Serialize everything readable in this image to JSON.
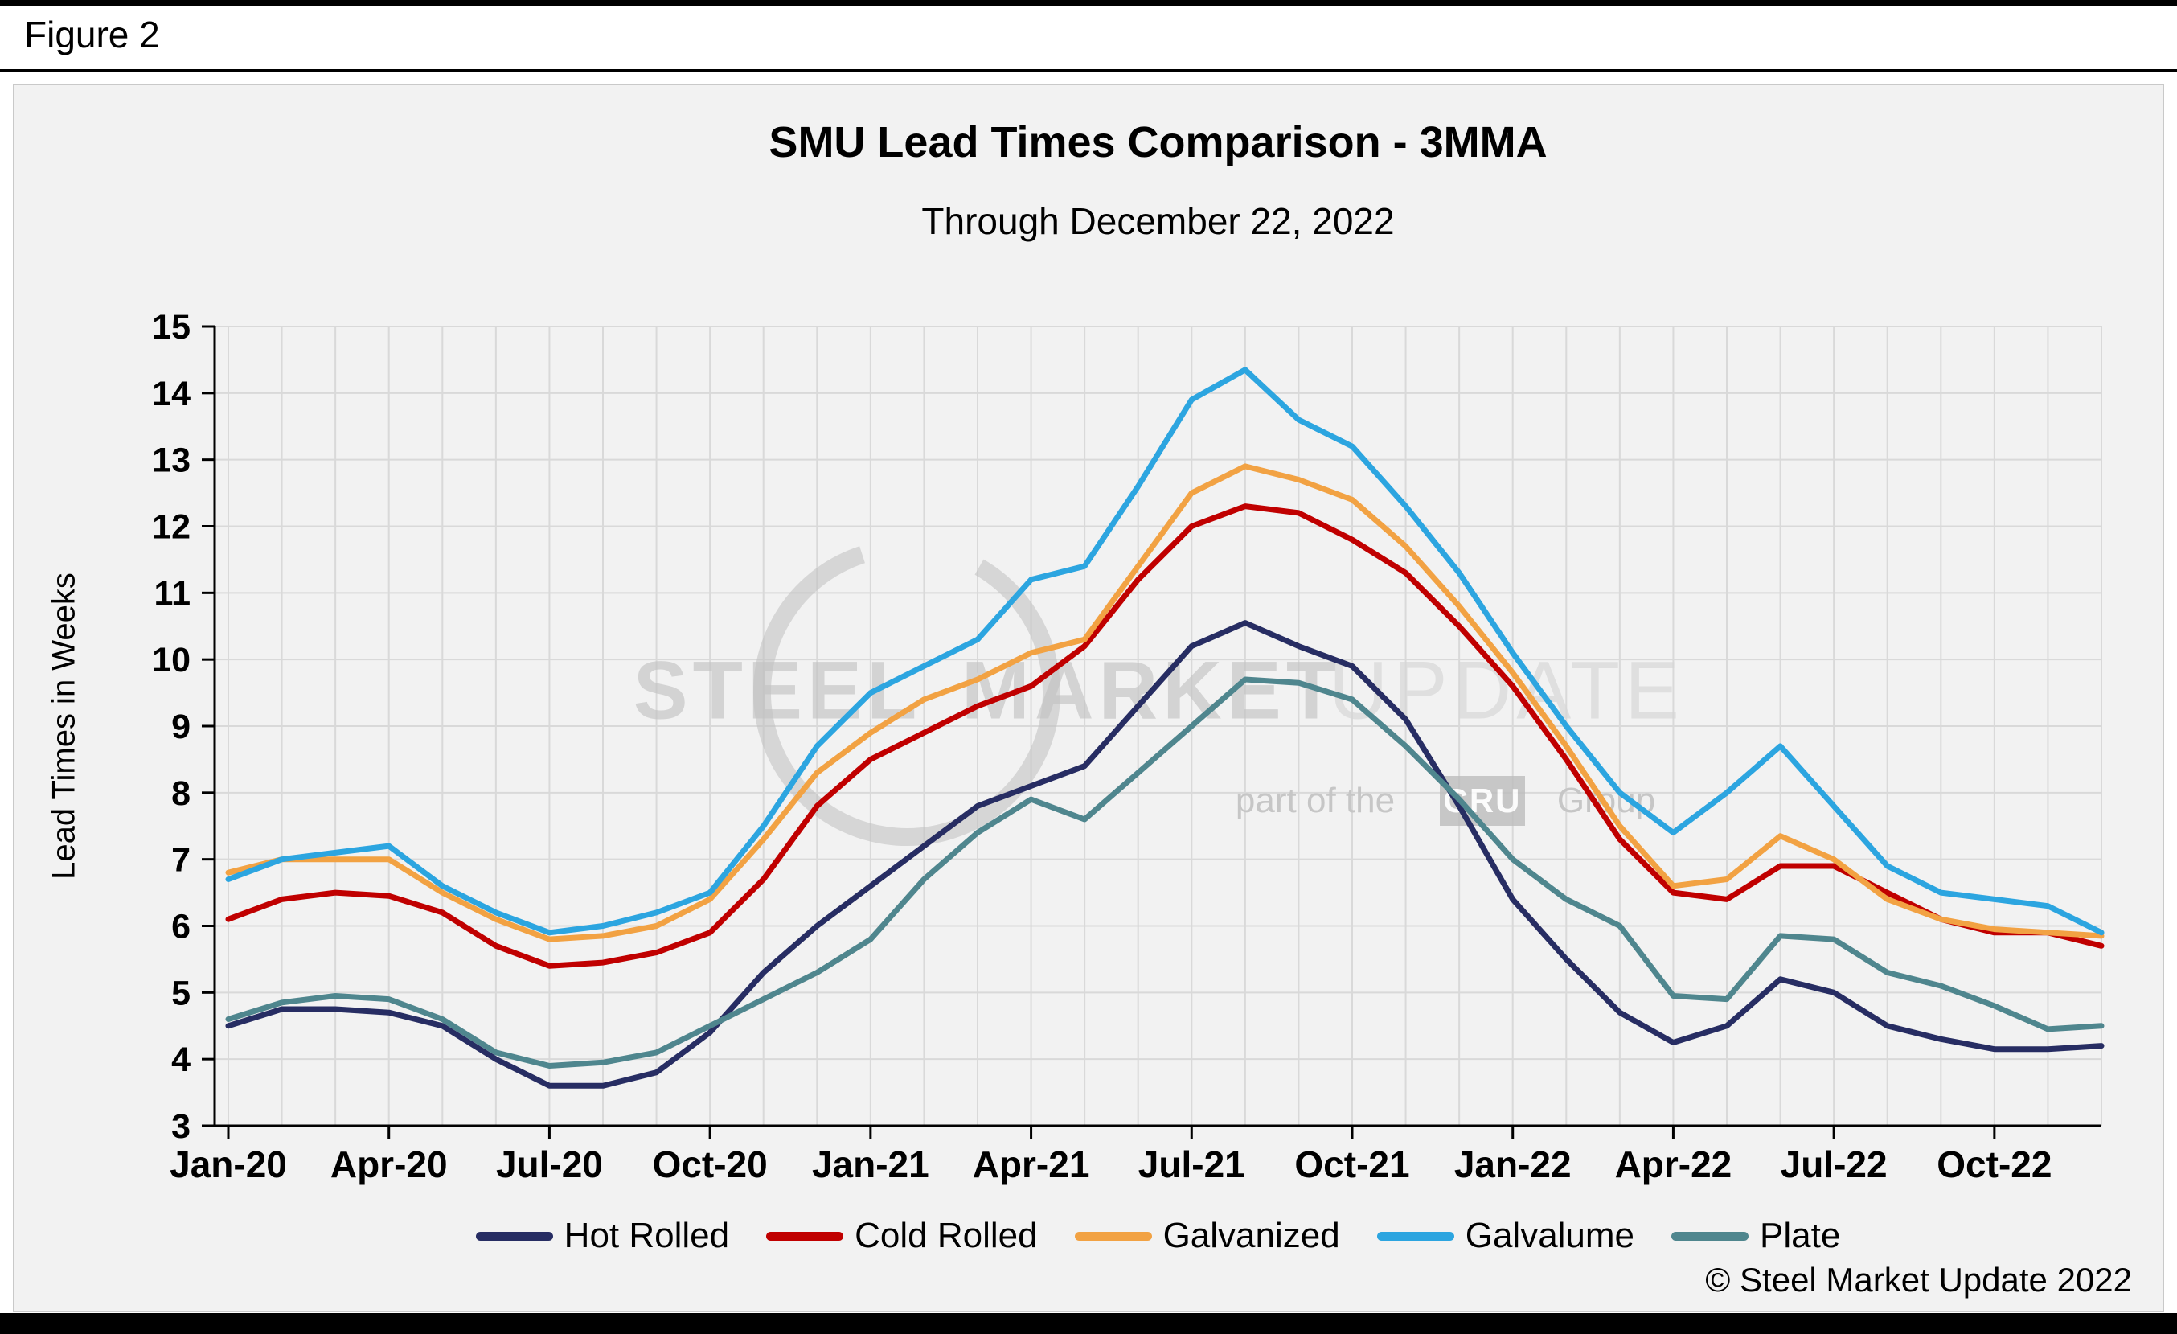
{
  "figure_label": "Figure 2",
  "chart": {
    "title": "SMU Lead Times Comparison - 3MMA",
    "subtitle": "Through December 22, 2022",
    "ylabel": "Lead Times in Weeks",
    "copyright": "© Steel Market Update 2022"
  },
  "watermark": {
    "steel": "STEEL",
    "market": "MARKET",
    "update": "UPDATE",
    "part_of_the": "part of the",
    "cru": "CRU",
    "group": "Group"
  },
  "chart_data": {
    "type": "line",
    "title": "SMU Lead Times Comparison - 3MMA",
    "subtitle": "Through December 22, 2022",
    "xlabel": "",
    "ylabel": "Lead Times in Weeks",
    "ylim": [
      3,
      15
    ],
    "y_ticks": [
      3,
      4,
      5,
      6,
      7,
      8,
      9,
      10,
      11,
      12,
      13,
      14,
      15
    ],
    "grid": true,
    "legend_position": "bottom",
    "x_tick_labels": [
      "Jan-20",
      "Apr-20",
      "Jul-20",
      "Oct-20",
      "Jan-21",
      "Apr-21",
      "Jul-21",
      "Oct-21",
      "Jan-22",
      "Apr-22",
      "Jul-22",
      "Oct-22"
    ],
    "x_months": [
      "Jan-20",
      "Feb-20",
      "Mar-20",
      "Apr-20",
      "May-20",
      "Jun-20",
      "Jul-20",
      "Aug-20",
      "Sep-20",
      "Oct-20",
      "Nov-20",
      "Dec-20",
      "Jan-21",
      "Feb-21",
      "Mar-21",
      "Apr-21",
      "May-21",
      "Jun-21",
      "Jul-21",
      "Aug-21",
      "Sep-21",
      "Oct-21",
      "Nov-21",
      "Dec-21",
      "Jan-22",
      "Feb-22",
      "Mar-22",
      "Apr-22",
      "May-22",
      "Jun-22",
      "Jul-22",
      "Aug-22",
      "Sep-22",
      "Oct-22",
      "Nov-22",
      "Dec-22"
    ],
    "series": [
      {
        "name": "Hot Rolled",
        "color": "#272D63",
        "values": [
          4.5,
          4.75,
          4.75,
          4.7,
          4.5,
          4.0,
          3.6,
          3.6,
          3.8,
          4.4,
          5.3,
          6.0,
          6.6,
          7.2,
          7.8,
          8.1,
          8.4,
          9.3,
          10.2,
          10.55,
          10.2,
          9.9,
          9.1,
          7.8,
          6.4,
          5.5,
          4.7,
          4.25,
          4.5,
          5.2,
          5.0,
          4.5,
          4.3,
          4.15,
          4.15,
          4.2
        ]
      },
      {
        "name": "Cold Rolled",
        "color": "#C00000",
        "values": [
          6.1,
          6.4,
          6.5,
          6.45,
          6.2,
          5.7,
          5.4,
          5.45,
          5.6,
          5.9,
          6.7,
          7.8,
          8.5,
          8.9,
          9.3,
          9.6,
          10.2,
          11.2,
          12.0,
          12.3,
          12.2,
          11.8,
          11.3,
          10.5,
          9.6,
          8.5,
          7.3,
          6.5,
          6.4,
          6.9,
          6.9,
          6.5,
          6.1,
          5.9,
          5.9,
          5.7
        ]
      },
      {
        "name": "Galvanized",
        "color": "#F2A243",
        "values": [
          6.8,
          7.0,
          7.0,
          7.0,
          6.5,
          6.1,
          5.8,
          5.85,
          6.0,
          6.4,
          7.3,
          8.3,
          8.9,
          9.4,
          9.7,
          10.1,
          10.3,
          11.4,
          12.5,
          12.9,
          12.7,
          12.4,
          11.7,
          10.8,
          9.8,
          8.7,
          7.5,
          6.6,
          6.7,
          7.35,
          7.0,
          6.4,
          6.1,
          5.95,
          5.9,
          5.85
        ]
      },
      {
        "name": "Galvalume",
        "color": "#2CA5E0",
        "values": [
          6.7,
          7.0,
          7.1,
          7.2,
          6.6,
          6.2,
          5.9,
          6.0,
          6.2,
          6.5,
          7.5,
          8.7,
          9.5,
          9.9,
          10.3,
          11.2,
          11.4,
          12.6,
          13.9,
          14.35,
          13.6,
          13.2,
          12.3,
          11.3,
          10.1,
          9.0,
          8.0,
          7.4,
          8.0,
          8.7,
          7.8,
          6.9,
          6.5,
          6.4,
          6.3,
          5.9
        ]
      },
      {
        "name": "Plate",
        "color": "#4F868E",
        "values": [
          4.6,
          4.85,
          4.95,
          4.9,
          4.6,
          4.1,
          3.9,
          3.95,
          4.1,
          4.5,
          4.9,
          5.3,
          5.8,
          6.7,
          7.4,
          7.9,
          7.6,
          8.3,
          9.0,
          9.7,
          9.65,
          9.4,
          8.7,
          7.9,
          7.0,
          6.4,
          6.0,
          4.95,
          4.9,
          5.85,
          5.8,
          5.3,
          5.1,
          4.8,
          4.45,
          4.5
        ]
      }
    ]
  }
}
